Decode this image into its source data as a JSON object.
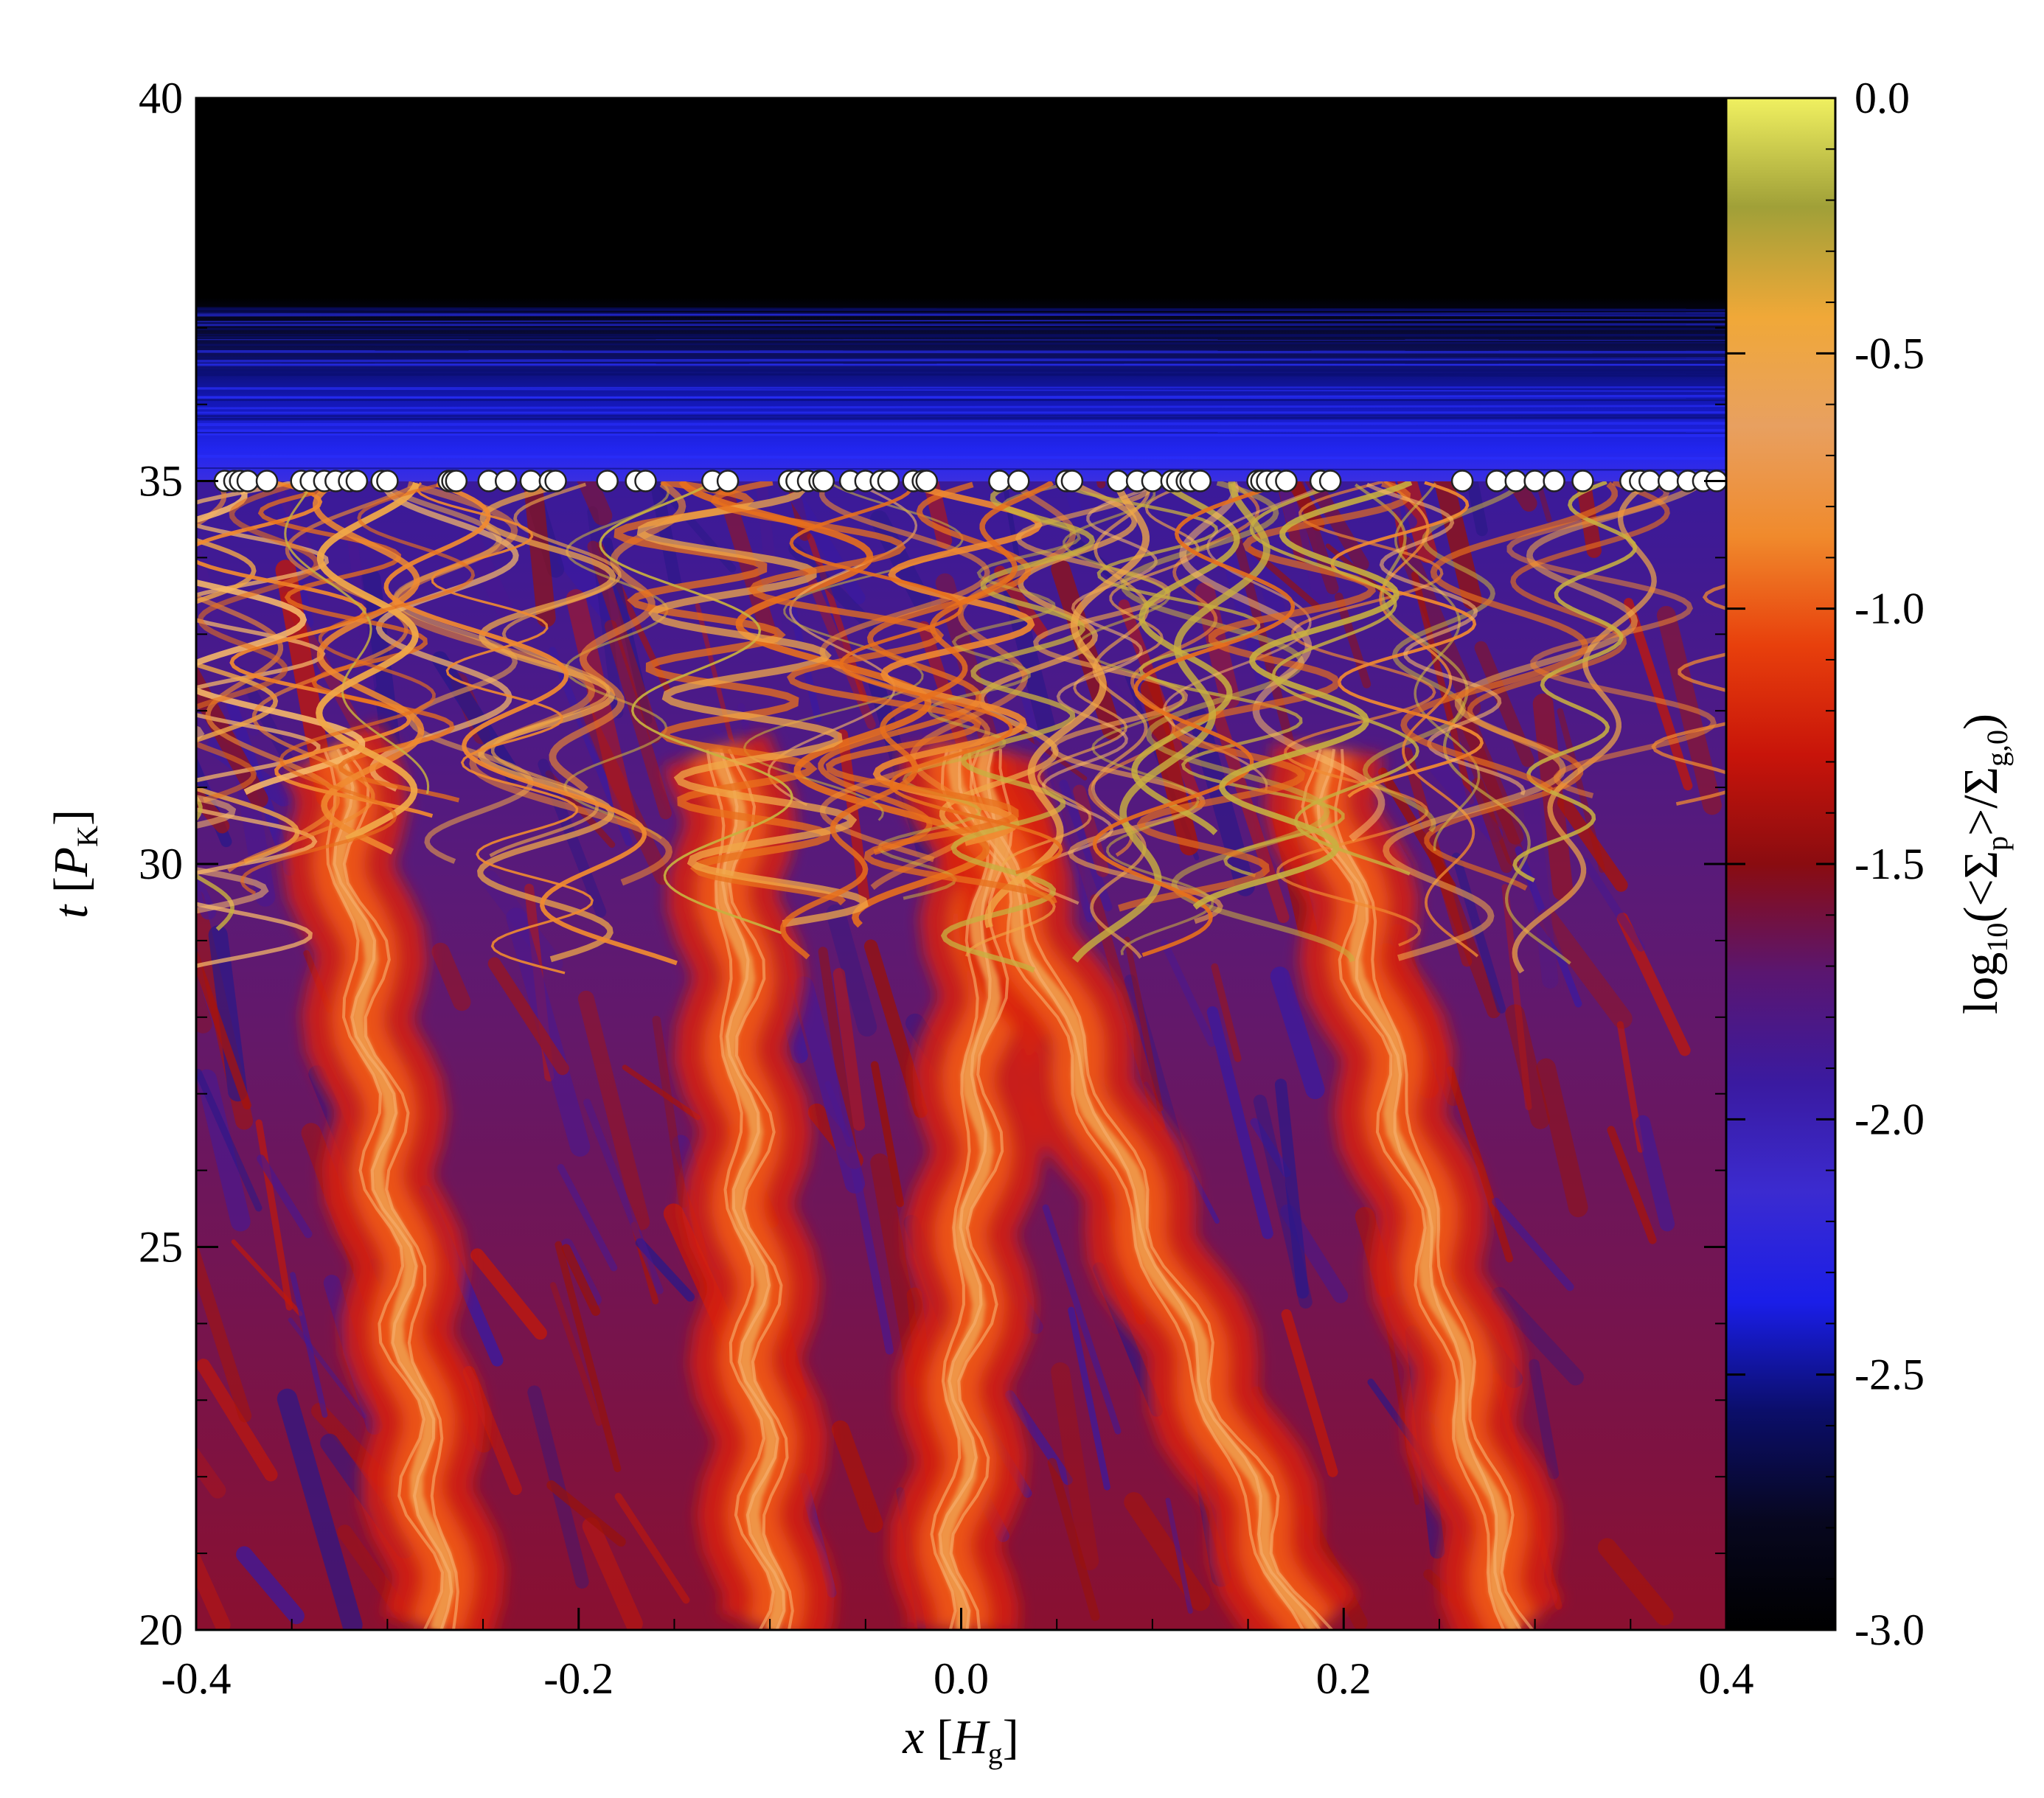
{
  "chart_data": {
    "type": "heatmap",
    "title": "",
    "xlabel": {
      "var": "x",
      "unit": "H",
      "unit_sub": "g"
    },
    "ylabel": {
      "var": "t",
      "unit": "P",
      "unit_sub": "K"
    },
    "xlim": [
      -0.4,
      0.4
    ],
    "ylim": [
      20,
      40
    ],
    "x_ticks": [
      -0.4,
      -0.2,
      0.0,
      0.2,
      0.4
    ],
    "x_tick_labels": [
      "-0.4",
      "-0.2",
      "0.0",
      "0.2",
      "0.4"
    ],
    "y_ticks": [
      20,
      25,
      30,
      35,
      40
    ],
    "y_tick_labels": [
      "20",
      "25",
      "30",
      "35",
      "40"
    ],
    "colorbar": {
      "label": {
        "prefix": "log",
        "prefix_sub": "10",
        "open": "(<Σ",
        "num_sub": "p",
        "mid": ">/Σ",
        "den_sub": "g,0",
        "close": ")"
      },
      "range": [
        -3.0,
        0.0
      ],
      "ticks": [
        0.0,
        -0.5,
        -1.0,
        -1.5,
        -2.0,
        -2.5,
        -3.0
      ],
      "tick_labels": [
        "0.0",
        "-0.5",
        "-1.0",
        "-1.5",
        "-2.0",
        "-2.5",
        "-3.0"
      ],
      "colormap": [
        "#000000",
        "#07071f",
        "#0b0e6a",
        "#1a1ee8",
        "#3b2bd0",
        "#3a1aa0",
        "#5a1670",
        "#8a0c10",
        "#c8140a",
        "#e8400c",
        "#f08a2c",
        "#e8a060",
        "#f0a838",
        "#a0a038",
        "#f0f060"
      ]
    },
    "planetesimal_time": 35,
    "planetesimal_x": [
      -0.385,
      -0.38,
      -0.377,
      -0.373,
      -0.363,
      -0.345,
      -0.34,
      -0.333,
      -0.327,
      -0.32,
      -0.316,
      -0.303,
      -0.3,
      -0.268,
      -0.266,
      -0.264,
      -0.247,
      -0.238,
      -0.225,
      -0.215,
      -0.212,
      -0.185,
      -0.17,
      -0.165,
      -0.13,
      -0.122,
      -0.09,
      -0.086,
      -0.08,
      -0.074,
      -0.072,
      -0.058,
      -0.05,
      -0.042,
      -0.038,
      -0.025,
      -0.02,
      -0.018,
      0.02,
      0.03,
      0.055,
      0.058,
      0.082,
      0.092,
      0.1,
      0.11,
      0.113,
      0.118,
      0.12,
      0.125,
      0.155,
      0.157,
      0.16,
      0.165,
      0.17,
      0.188,
      0.193,
      0.262,
      0.28,
      0.29,
      0.3,
      0.31,
      0.325,
      0.35,
      0.355,
      0.36,
      0.37,
      0.38,
      0.388,
      0.395
    ],
    "filaments": [
      {
        "x_at_20": -0.27,
        "x_at_30": -0.32,
        "peak": -0.45
      },
      {
        "x_at_20": -0.1,
        "x_at_30": -0.12,
        "peak": -0.55
      },
      {
        "x_at_20": -0.005,
        "x_at_30": 0.015,
        "peak": -0.4
      },
      {
        "x_at_20": 0.18,
        "x_at_30": 0.02,
        "peak": -0.5
      },
      {
        "x_at_20": 0.29,
        "x_at_30": 0.2,
        "peak": -0.45
      }
    ]
  }
}
